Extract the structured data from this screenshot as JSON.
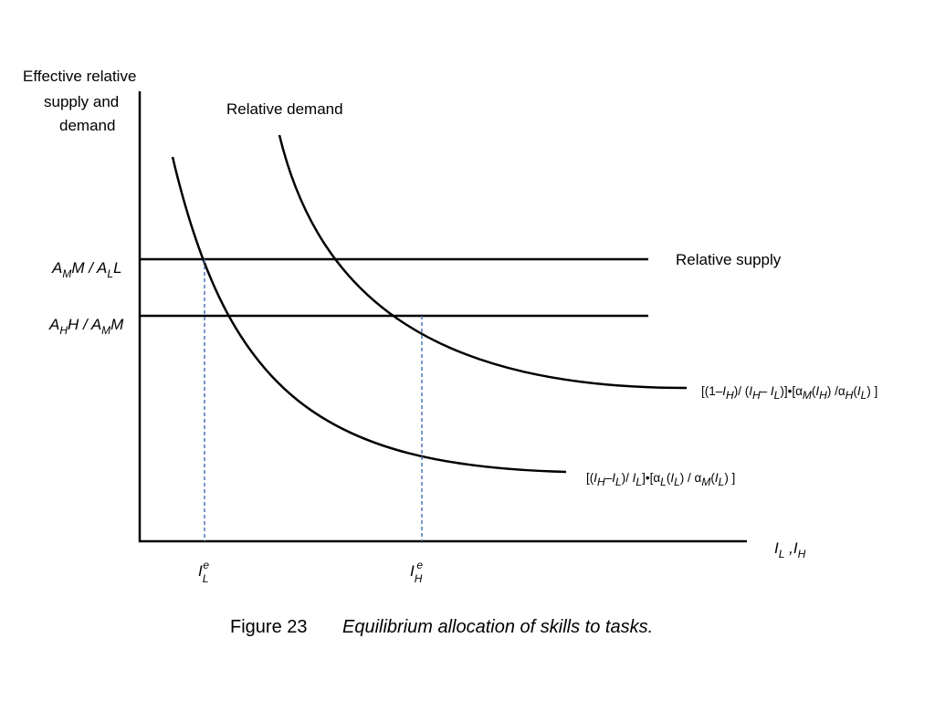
{
  "y_axis_label": [
    "Effective relative",
    "supply and",
    "demand"
  ],
  "x_axis_label": {
    "s1": "I",
    "sub1": "L",
    "sep": " ,",
    "s2": "I",
    "sub2": "H"
  },
  "relative_demand_label": "Relative  demand",
  "relative_supply_label": "Relative supply",
  "level_high": {
    "a": "A",
    "a_sub": "M",
    "mid": "M / A",
    "b_sub": "L",
    "end": "L"
  },
  "level_low": {
    "a": "A",
    "a_sub": "H",
    "mid": "H / A",
    "b_sub": "M",
    "end": "M"
  },
  "eq_low": {
    "main": "I",
    "sub": "L",
    "sup": "e"
  },
  "eq_high": {
    "main": "I",
    "sub": "H",
    "sup": "e"
  },
  "upper_curve_formula": {
    "p1": "[(1–",
    "i1": "I",
    "s1": "H",
    "p2": ")/ (",
    "i2": "I",
    "s2": "H",
    "p3": "– ",
    "i3": "I",
    "s3": "L",
    "p4": ")]•[α",
    "s4": "M",
    "p5": "(",
    "i5": "I",
    "s5": "H",
    "p6": ") /α",
    "s6": "H",
    "p7": "(",
    "i7": "I",
    "s7": "L",
    "p8": ") ]"
  },
  "lower_curve_formula": {
    "p1": "[(",
    "i1": "I",
    "s1": "H",
    "p2": "–",
    "i2": "I",
    "s2": "L",
    "p3": ")/ ",
    "i3": "I",
    "s3": "L",
    "p4": "]•[α",
    "s4": "L",
    "p5": "(",
    "i5": "I",
    "s5": "L",
    "p6": ") / α",
    "s6": "M",
    "p7": "(",
    "i7": "I",
    "s7": "L",
    "p8": ") ]"
  },
  "caption": {
    "number": "Figure 23",
    "title": "Equilibrium allocation of skills to tasks."
  },
  "colors": {
    "lines": "#000000",
    "guides": "#4a76b8"
  }
}
